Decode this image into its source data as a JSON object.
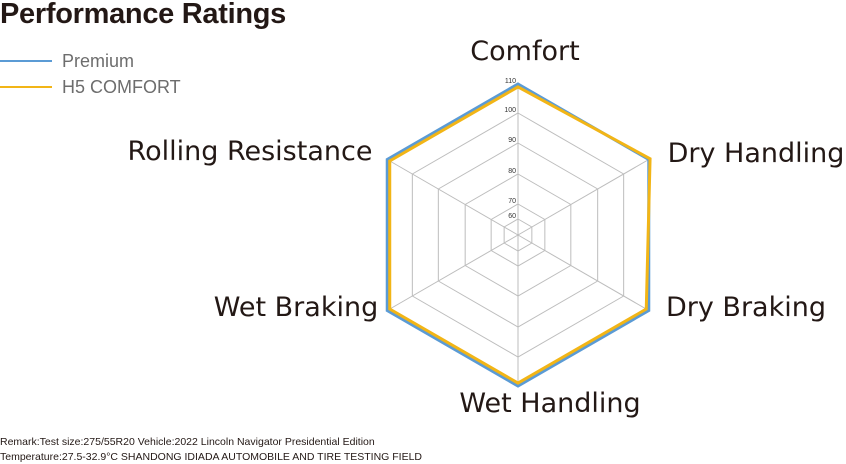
{
  "title": "Performance Ratings",
  "legend": [
    {
      "name": "Premium",
      "color": "#5b9bd5"
    },
    {
      "name": "H5 COMFORT",
      "color": "#f2b516"
    }
  ],
  "chart_data": {
    "type": "radar",
    "title": "Performance Ratings",
    "axes": [
      "Comfort",
      "Dry Handling",
      "Dry Braking",
      "Wet Handling",
      "Wet Braking",
      "Rolling Resistance"
    ],
    "ticks": [
      60,
      70,
      80,
      90,
      100,
      110
    ],
    "range": [
      50,
      110
    ],
    "grid": true,
    "legend_position": "top-left",
    "series": [
      {
        "name": "Premium",
        "color": "#5b9bd5",
        "values": [
          110,
          110,
          110,
          110,
          110,
          110
        ]
      },
      {
        "name": "H5 COMFORT",
        "color": "#f2b516",
        "values": [
          109,
          110.5,
          109,
          109,
          109,
          109
        ]
      }
    ]
  },
  "remarks": {
    "line1": "Remark:Test size:275/55R20 Vehicle:2022 Lincoln Navigator Presidential Edition",
    "line2": "Temperature:27.5-32.9°C SHANDONG IDIADA AUTOMOBILE AND TIRE TESTING FIELD"
  }
}
